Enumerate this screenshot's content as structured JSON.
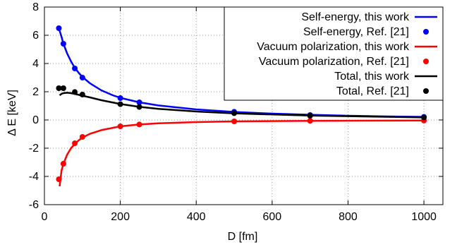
{
  "chart_data": {
    "type": "line",
    "xlabel": "D [fm]",
    "ylabel": "Δ E  [keV]",
    "xlim": [
      0,
      1050
    ],
    "ylim": [
      -6,
      8
    ],
    "xticks": [
      "0",
      "200",
      "400",
      "600",
      "800",
      "1000"
    ],
    "yticks": [
      "-6",
      "-4",
      "-2",
      "0",
      "2",
      "4",
      "6",
      "8"
    ],
    "grid": true,
    "legend_position": "top-right",
    "series": [
      {
        "name": "Self-energy, this work",
        "style": "line",
        "color": "#0000ff",
        "x": [
          38,
          45,
          50,
          60,
          70,
          80,
          90,
          100,
          120,
          150,
          180,
          200,
          250,
          300,
          400,
          500,
          600,
          700,
          800,
          900,
          1000
        ],
        "y": [
          6.5,
          5.9,
          5.4,
          4.7,
          4.15,
          3.7,
          3.35,
          3.05,
          2.6,
          2.1,
          1.75,
          1.57,
          1.25,
          1.03,
          0.75,
          0.57,
          0.45,
          0.37,
          0.3,
          0.25,
          0.22
        ]
      },
      {
        "name": "Self-energy, Ref. [21]",
        "style": "points",
        "color": "#0000ff",
        "x": [
          38,
          50,
          80,
          100,
          200,
          250,
          500,
          700,
          1000
        ],
        "y": [
          6.5,
          5.4,
          3.65,
          3.0,
          1.55,
          1.25,
          0.58,
          0.35,
          0.22
        ]
      },
      {
        "name": "Vacuum polarization, this work",
        "style": "line",
        "color": "#ff0000",
        "x": [
          40,
          45,
          50,
          60,
          70,
          80,
          90,
          100,
          120,
          150,
          200,
          250,
          300,
          400,
          500,
          700,
          1000
        ],
        "y": [
          -4.7,
          -3.6,
          -3.1,
          -2.45,
          -2.0,
          -1.7,
          -1.45,
          -1.25,
          -0.98,
          -0.72,
          -0.45,
          -0.32,
          -0.24,
          -0.15,
          -0.1,
          -0.06,
          -0.04
        ]
      },
      {
        "name": "Vacuum polarization, Ref. [21]",
        "style": "points",
        "color": "#ff0000",
        "x": [
          38,
          50,
          80,
          100,
          200,
          250,
          500,
          700,
          1000
        ],
        "y": [
          -4.2,
          -3.1,
          -1.65,
          -1.2,
          -0.45,
          -0.32,
          -0.1,
          -0.06,
          -0.04
        ]
      },
      {
        "name": "Total, this work",
        "style": "line",
        "color": "#000000",
        "x": [
          40,
          45,
          50,
          60,
          70,
          80,
          100,
          120,
          150,
          200,
          250,
          300,
          400,
          500,
          700,
          1000
        ],
        "y": [
          1.75,
          1.85,
          1.9,
          1.93,
          1.9,
          1.85,
          1.72,
          1.6,
          1.4,
          1.13,
          0.93,
          0.79,
          0.6,
          0.47,
          0.31,
          0.18
        ]
      },
      {
        "name": "Total, Ref. [21]",
        "style": "points",
        "color": "#000000",
        "x": [
          38,
          50,
          80,
          100,
          200,
          250,
          500,
          700,
          1000
        ],
        "y": [
          2.25,
          2.25,
          1.98,
          1.8,
          1.12,
          0.92,
          0.48,
          0.3,
          0.18
        ]
      }
    ]
  }
}
